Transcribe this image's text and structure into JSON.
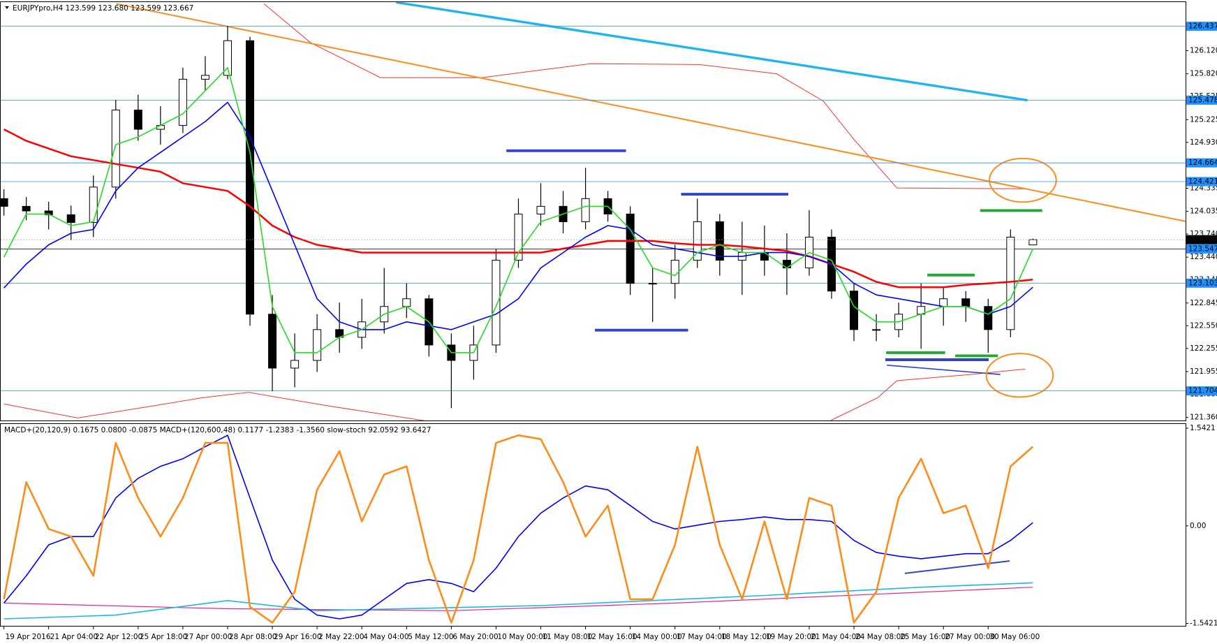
{
  "chart_data": [
    {
      "type": "candlestick",
      "title": "EURJPYpro,H4  123.599 123.680 123.599 123.667",
      "x": [
        0,
        4,
        8,
        12,
        16,
        20,
        24,
        28,
        32,
        36,
        40,
        44,
        48,
        52,
        56,
        60,
        64,
        68,
        72,
        76,
        80,
        84,
        88,
        92,
        96,
        100,
        104,
        108,
        112,
        116,
        120,
        124,
        128,
        132,
        136,
        140,
        144,
        148,
        152,
        156,
        160,
        164,
        168,
        172,
        176,
        180,
        184
      ],
      "open": [
        124.2,
        124.1,
        124.04,
        123.99,
        123.89,
        124.35,
        125.35,
        125.1,
        125.15,
        125.75,
        125.8,
        126.25,
        122.7,
        122.0,
        122.1,
        122.5,
        122.4,
        122.6,
        122.8,
        122.9,
        122.3,
        122.1,
        122.3,
        123.4,
        124.0,
        124.1,
        123.9,
        124.2,
        124.0,
        123.1,
        123.1,
        123.4,
        123.9,
        123.4,
        123.5,
        123.4,
        123.3,
        123.7,
        123.0,
        122.5,
        122.5,
        122.7,
        122.8,
        122.9,
        122.8,
        122.5,
        123.599
      ],
      "high": [
        124.32,
        124.22,
        124.16,
        124.11,
        124.5,
        125.48,
        125.55,
        125.4,
        125.9,
        126.05,
        126.44,
        126.3,
        122.95,
        122.45,
        122.7,
        122.85,
        122.9,
        123.3,
        123.1,
        122.95,
        122.45,
        122.55,
        123.55,
        124.2,
        124.4,
        124.3,
        124.6,
        124.3,
        124.1,
        123.3,
        123.6,
        124.2,
        124.0,
        123.9,
        123.85,
        123.75,
        124.05,
        123.8,
        123.1,
        122.7,
        122.85,
        123.1,
        123.05,
        123.0,
        122.9,
        123.8,
        123.68
      ],
      "low": [
        123.98,
        123.92,
        123.8,
        123.66,
        123.7,
        124.2,
        124.95,
        124.9,
        125.05,
        125.6,
        125.75,
        122.55,
        121.7,
        121.75,
        121.95,
        122.2,
        122.25,
        122.45,
        122.65,
        122.15,
        121.48,
        121.85,
        122.2,
        123.3,
        123.85,
        123.75,
        123.8,
        123.9,
        122.95,
        122.6,
        122.9,
        123.3,
        123.2,
        122.95,
        123.2,
        122.95,
        123.2,
        122.9,
        122.35,
        122.35,
        122.4,
        122.25,
        122.55,
        122.6,
        122.2,
        122.4,
        123.599
      ],
      "close": [
        124.1,
        124.04,
        123.99,
        123.89,
        124.35,
        125.35,
        125.1,
        125.15,
        125.75,
        125.8,
        126.25,
        122.7,
        122.0,
        122.1,
        122.5,
        122.4,
        122.6,
        122.8,
        122.9,
        122.3,
        122.1,
        122.3,
        123.4,
        124.0,
        124.1,
        123.9,
        124.2,
        124.0,
        123.1,
        123.1,
        123.4,
        123.9,
        123.4,
        123.5,
        123.4,
        123.3,
        123.7,
        123.0,
        122.5,
        122.5,
        122.7,
        122.8,
        122.9,
        122.8,
        122.5,
        123.7,
        123.667
      ],
      "up_color": "#ffffff",
      "down_color": "#000000",
      "series": [
        {
          "color": "#ff0000",
          "width": 2.5,
          "values": [
            125.1,
            124.95,
            124.85,
            124.75,
            124.7,
            124.65,
            124.6,
            124.55,
            124.4,
            124.35,
            124.3,
            124.1,
            123.85,
            123.7,
            123.6,
            123.55,
            123.5,
            123.5,
            123.5,
            123.5,
            123.5,
            123.5,
            123.5,
            123.5,
            123.5,
            123.55,
            123.6,
            123.65,
            123.65,
            123.65,
            123.62,
            123.6,
            123.6,
            123.58,
            123.55,
            123.52,
            123.45,
            123.35,
            123.25,
            123.12,
            123.05,
            123.05,
            123.05,
            123.08,
            123.1,
            123.12,
            123.15
          ]
        },
        {
          "color": "#0000ff",
          "width": 1.6,
          "values": [
            123.04,
            123.35,
            123.6,
            123.75,
            123.8,
            124.3,
            124.6,
            124.8,
            125.0,
            125.2,
            125.45,
            125.0,
            124.3,
            123.6,
            122.9,
            122.6,
            122.5,
            122.5,
            122.6,
            122.55,
            122.5,
            122.6,
            122.7,
            122.9,
            123.3,
            123.5,
            123.7,
            123.85,
            123.8,
            123.6,
            123.55,
            123.5,
            123.45,
            123.45,
            123.5,
            123.5,
            123.45,
            123.35,
            123.1,
            122.95,
            122.9,
            122.85,
            122.8,
            122.8,
            122.7,
            122.8,
            123.05
          ]
        },
        {
          "color": "#22dd22",
          "width": 1.6,
          "values": [
            123.44,
            124.0,
            124.0,
            123.85,
            123.9,
            124.9,
            125.0,
            125.15,
            125.3,
            125.6,
            125.9,
            124.8,
            122.8,
            122.2,
            122.2,
            122.4,
            122.5,
            122.7,
            122.8,
            122.6,
            122.2,
            122.2,
            122.8,
            123.5,
            123.9,
            124.0,
            124.1,
            124.1,
            123.8,
            123.3,
            123.2,
            123.5,
            123.6,
            123.5,
            123.5,
            123.3,
            123.5,
            123.4,
            122.8,
            122.6,
            122.6,
            122.7,
            122.8,
            122.8,
            122.7,
            122.9,
            123.55
          ]
        }
      ],
      "xlim": [
        -0.7,
        211.3
      ],
      "ylim": [
        121.32,
        126.76
      ],
      "yticks": [
        {
          "value": 126.12,
          "label": "126.120"
        },
        {
          "value": 125.82,
          "label": "125.820"
        },
        125.525,
        125.225,
        {
          "value": 124.93,
          "label": "124.930"
        },
        124.335,
        124.035,
        {
          "value": 123.74,
          "label": "123.740"
        },
        {
          "value": 123.44,
          "label": "123.440"
        },
        123.145,
        122.845,
        {
          "value": 122.55,
          "label": "122.550"
        },
        122.255,
        121.955,
        {
          "value": 121.66,
          "label": "121.660"
        },
        {
          "value": 121.36,
          "label": "121.360"
        }
      ],
      "levels": [
        {
          "value": 126.437,
          "color": "#1e90ff"
        },
        {
          "value": 125.478,
          "color": "#1e90ff"
        },
        {
          "value": 124.664,
          "color": "#1e90ff"
        },
        {
          "value": 124.421,
          "color": "#1e90ff"
        },
        {
          "value": 123.547,
          "color": "#000000"
        },
        {
          "value": 123.103,
          "color": "#1e90ff"
        },
        {
          "value": 121.704,
          "color": "#1e90ff"
        }
      ],
      "current_price": 123.667,
      "xticks": [
        {
          "value": 0,
          "label": "19 Apr 2016"
        },
        {
          "value": 8,
          "label": "21 Apr 04:00"
        },
        {
          "value": 16,
          "label": "22 Apr 12:00"
        },
        {
          "value": 24,
          "label": "25 Apr 18:00"
        },
        {
          "value": 32,
          "label": "27 Apr 00:00"
        },
        {
          "value": 40,
          "label": "28 Apr 08:00"
        },
        {
          "value": 48,
          "label": "29 Apr 16:00"
        },
        {
          "value": 56,
          "label": "2 May 22:00"
        },
        {
          "value": 64,
          "label": "4 May 04:00"
        },
        {
          "value": 72,
          "label": "5 May 12:00"
        },
        {
          "value": 80,
          "label": "6 May 20:00"
        },
        {
          "value": 88,
          "label": "10 May 00:00"
        },
        {
          "value": 96,
          "label": "11 May 08:00"
        },
        {
          "value": 104,
          "label": "12 May 16:00"
        },
        {
          "value": 112,
          "label": "14 May 00:00"
        },
        {
          "value": 120,
          "label": "17 May 04:00"
        },
        {
          "value": 128,
          "label": "18 May 12:00"
        },
        {
          "value": 136,
          "label": "19 May 20:00"
        },
        {
          "value": 144,
          "label": "21 May 04:00"
        },
        {
          "value": 152,
          "label": "24 May 08:00"
        },
        {
          "value": 160,
          "label": "25 May 16:00"
        },
        {
          "value": 168,
          "label": "27 May 00:00"
        },
        {
          "value": 176,
          "label": "30 May 06:00"
        }
      ]
    },
    {
      "type": "line",
      "title": "MACD+(20,120,9) 0.1675 0.0800 -0.0875  MACD+(120,600,48) 0.1177 -1.2383 -1.3560  slow-stoch 92.0592 93.6427",
      "x": [
        0,
        4,
        8,
        12,
        16,
        20,
        24,
        28,
        32,
        36,
        40,
        44,
        48,
        52,
        56,
        60,
        64,
        68,
        72,
        76,
        80,
        84,
        88,
        92,
        96,
        100,
        104,
        108,
        112,
        116,
        120,
        124,
        128,
        132,
        136,
        140,
        144,
        148,
        152,
        156,
        160,
        164,
        168,
        172,
        176,
        180,
        184
      ],
      "series": [
        {
          "color": "#e3248e",
          "width": 1.2,
          "x": [
            0,
            40,
            80,
            120,
            184
          ],
          "values": [
            -1.22,
            -1.31,
            -1.34,
            -1.22,
            -0.97
          ]
        },
        {
          "color": "#1eb4f0",
          "width": 1.6,
          "x": [
            0,
            20,
            40,
            56,
            96,
            136,
            164,
            184
          ],
          "values": [
            -1.47,
            -1.41,
            -1.18,
            -1.34,
            -1.26,
            -1.1,
            -0.97,
            -0.9
          ]
        },
        {
          "color": "#0000ff",
          "width": 1.6,
          "values": [
            -1.22,
            -0.79,
            -0.3,
            -0.17,
            -0.17,
            0.44,
            0.75,
            0.94,
            1.06,
            1.25,
            1.43,
            0.44,
            -0.54,
            -1.16,
            -1.41,
            -1.47,
            -1.41,
            -1.16,
            -0.91,
            -0.85,
            -0.91,
            -1.04,
            -0.67,
            -0.17,
            0.2,
            0.44,
            0.63,
            0.57,
            0.32,
            0.07,
            -0.05,
            0.01,
            0.07,
            0.1,
            0.14,
            0.1,
            0.1,
            0.07,
            -0.23,
            -0.42,
            -0.48,
            -0.52,
            -0.48,
            -0.44,
            -0.44,
            -0.23,
            0.05
          ]
        },
        {
          "color": "#ff8c1a",
          "width": 2.6,
          "values": [
            -1.16,
            0.69,
            -0.05,
            -0.17,
            -0.79,
            1.31,
            0.44,
            -0.17,
            0.44,
            1.31,
            1.31,
            -1.28,
            -1.53,
            -1.04,
            0.57,
            1.18,
            0.07,
            0.81,
            0.94,
            -0.54,
            -1.53,
            -0.54,
            1.31,
            1.43,
            1.37,
            0.69,
            -0.17,
            0.32,
            -1.16,
            -1.16,
            -0.3,
            1.25,
            -0.3,
            -1.16,
            0.07,
            -1.16,
            0.44,
            0.32,
            -1.53,
            -1.04,
            0.44,
            1.06,
            0.2,
            0.32,
            -0.67,
            0.94,
            1.25
          ]
        }
      ],
      "xlim": [
        -0.7,
        211.3
      ],
      "ylim": [
        -1.58,
        1.62
      ],
      "yticks": [
        1.5421,
        {
          "value": 0,
          "label": "0.00"
        },
        -1.5421
      ]
    }
  ]
}
